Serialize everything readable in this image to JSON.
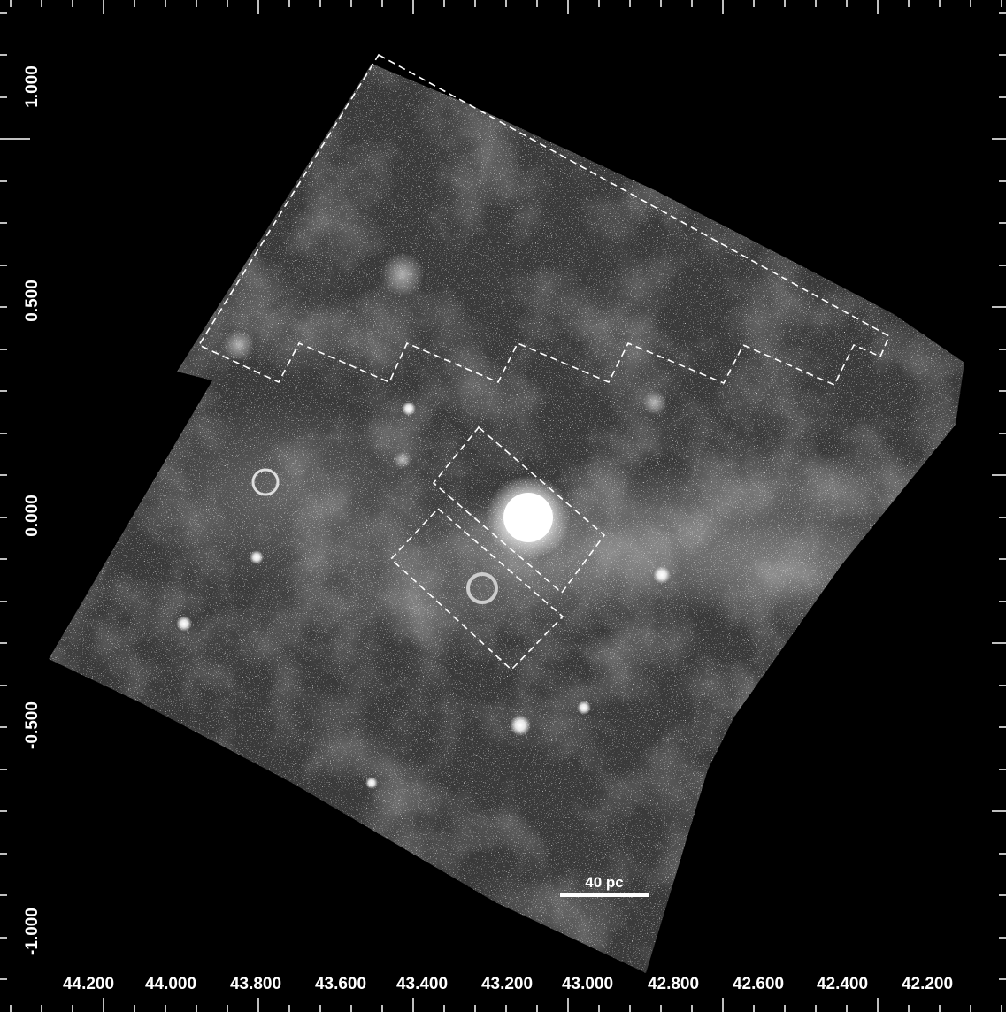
{
  "image": {
    "subject": "Grayscale infrared mosaic with coordinate axes, dashed survey-region outlines and a scale bar"
  },
  "axes": {
    "x_ticks": [
      "44.200",
      "44.000",
      "43.800",
      "43.600",
      "43.400",
      "43.200",
      "43.000",
      "42.800",
      "42.600",
      "42.400",
      "42.200"
    ],
    "y_ticks": [
      "1.000",
      "0.500",
      "0.000",
      "-0.500",
      "-1.000"
    ]
  },
  "scale_bar": {
    "label": "40 pc"
  },
  "colors": {
    "background": "#000000",
    "overlay": "#ffffff"
  }
}
